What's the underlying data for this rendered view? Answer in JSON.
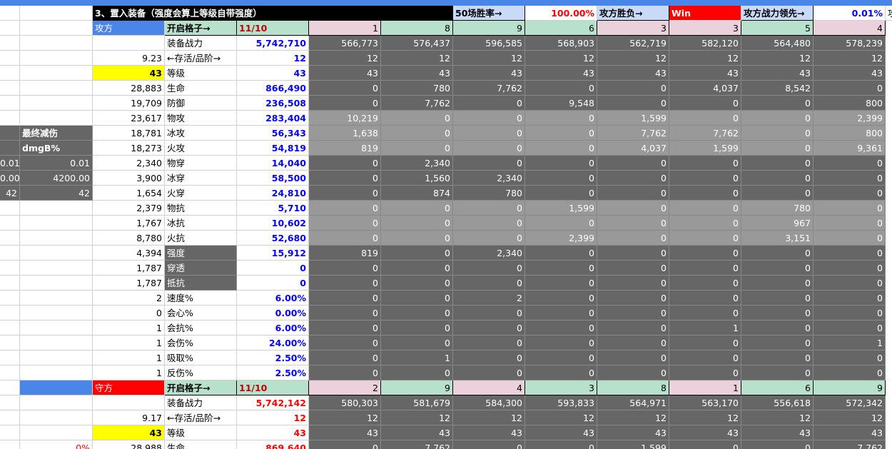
{
  "sheet": {
    "title": "3、置入装备（强度会算上等级自带强度）",
    "win_rate_label": "50场胜率→",
    "win_rate_value": "100.00%",
    "win_loss_label": "攻方胜负→",
    "win_loss_value": "Win",
    "lead_label": "攻方战力领先→",
    "lead_value": "0.01%",
    "lead_trail": "攻",
    "side_panel": {
      "final_reduction_label": "最终减伤",
      "dmg_label": "dmgB%",
      "rows": [
        [
          "0.01",
          "0.01"
        ],
        [
          "0.00",
          "4200.00"
        ],
        [
          "42",
          "42"
        ]
      ]
    },
    "attacker": {
      "label": "攻方",
      "slots_label": "开启格子→",
      "slots_value": "11/10",
      "slot_ids": [
        "1",
        "8",
        "9",
        "6",
        "3",
        "3",
        "5",
        "4"
      ],
      "rows": [
        {
          "a": "",
          "label": "装备战力",
          "total": "5,742,710",
          "vals": [
            "566,773",
            "576,437",
            "596,585",
            "568,903",
            "562,719",
            "582,120",
            "564,480",
            "578,239"
          ]
        },
        {
          "a": "9.23",
          "label": "←存活/品阶→",
          "total": "12",
          "vals": [
            "12",
            "12",
            "12",
            "12",
            "12",
            "12",
            "12",
            "12"
          ]
        },
        {
          "a": "43",
          "label": "等级",
          "total": "43",
          "vals": [
            "43",
            "43",
            "43",
            "43",
            "43",
            "43",
            "43",
            "43"
          ]
        },
        {
          "a": "28,883",
          "label": "生命",
          "total": "866,490",
          "vals": [
            "0",
            "780",
            "7,762",
            "0",
            "0",
            "4,037",
            "8,542",
            "0"
          ]
        },
        {
          "a": "19,709",
          "label": "防御",
          "total": "236,508",
          "vals": [
            "0",
            "7,762",
            "0",
            "9,548",
            "0",
            "0",
            "0",
            "800"
          ]
        },
        {
          "a": "23,617",
          "label": "物攻",
          "total": "283,404",
          "vals": [
            "10,219",
            "0",
            "0",
            "0",
            "1,599",
            "0",
            "0",
            "2,399"
          ]
        },
        {
          "a": "18,781",
          "label": "冰攻",
          "total": "56,343",
          "vals": [
            "1,638",
            "0",
            "0",
            "0",
            "7,762",
            "7,762",
            "0",
            "800"
          ]
        },
        {
          "a": "18,273",
          "label": "火攻",
          "total": "54,819",
          "vals": [
            "819",
            "0",
            "0",
            "0",
            "4,037",
            "1,599",
            "0",
            "9,361"
          ]
        },
        {
          "a": "2,340",
          "label": "物穿",
          "total": "14,040",
          "vals": [
            "0",
            "2,340",
            "0",
            "0",
            "0",
            "0",
            "0",
            "0"
          ]
        },
        {
          "a": "3,900",
          "label": "冰穿",
          "total": "58,500",
          "vals": [
            "0",
            "1,560",
            "2,340",
            "0",
            "0",
            "0",
            "0",
            "0"
          ]
        },
        {
          "a": "1,654",
          "label": "火穿",
          "total": "24,810",
          "vals": [
            "0",
            "874",
            "780",
            "0",
            "0",
            "0",
            "0",
            "0"
          ]
        },
        {
          "a": "2,379",
          "label": "物抗",
          "total": "5,710",
          "vals": [
            "0",
            "0",
            "0",
            "1,599",
            "0",
            "0",
            "780",
            "0"
          ]
        },
        {
          "a": "1,767",
          "label": "冰抗",
          "total": "10,602",
          "vals": [
            "0",
            "0",
            "0",
            "0",
            "0",
            "0",
            "967",
            "0"
          ]
        },
        {
          "a": "8,780",
          "label": "火抗",
          "total": "52,680",
          "vals": [
            "0",
            "0",
            "0",
            "2,399",
            "0",
            "0",
            "3,151",
            "0"
          ]
        },
        {
          "a": "4,394",
          "label": "强度",
          "total": "15,912",
          "vals": [
            "819",
            "0",
            "2,340",
            "0",
            "0",
            "0",
            "0",
            "0"
          ]
        },
        {
          "a": "1,787",
          "label": "穿透",
          "total": "0",
          "vals": [
            "0",
            "0",
            "0",
            "0",
            "0",
            "0",
            "0",
            "0"
          ]
        },
        {
          "a": "1,787",
          "label": "抵抗",
          "total": "0",
          "vals": [
            "0",
            "0",
            "0",
            "0",
            "0",
            "0",
            "0",
            "0"
          ]
        },
        {
          "a": "2",
          "label": "速度%",
          "total": "6.00%",
          "vals": [
            "0",
            "0",
            "2",
            "0",
            "0",
            "0",
            "0",
            "0"
          ]
        },
        {
          "a": "0",
          "label": "会心%",
          "total": "0.00%",
          "vals": [
            "0",
            "0",
            "0",
            "0",
            "0",
            "0",
            "0",
            "0"
          ]
        },
        {
          "a": "1",
          "label": "会抗%",
          "total": "6.00%",
          "vals": [
            "0",
            "0",
            "0",
            "0",
            "0",
            "1",
            "0",
            "0"
          ]
        },
        {
          "a": "1",
          "label": "会伤%",
          "total": "24.00%",
          "vals": [
            "0",
            "0",
            "0",
            "0",
            "0",
            "0",
            "0",
            "1"
          ]
        },
        {
          "a": "1",
          "label": "吸取%",
          "total": "2.50%",
          "vals": [
            "0",
            "1",
            "0",
            "0",
            "0",
            "0",
            "0",
            "0"
          ]
        },
        {
          "a": "1",
          "label": "反伤%",
          "total": "2.50%",
          "vals": [
            "0",
            "0",
            "0",
            "0",
            "0",
            "0",
            "0",
            "0"
          ]
        }
      ]
    },
    "defender": {
      "label": "守方",
      "slots_label": "开启格子→",
      "slots_value": "11/10",
      "slot_ids": [
        "2",
        "9",
        "4",
        "3",
        "8",
        "1",
        "6",
        "9"
      ],
      "rows": [
        {
          "a": "",
          "label": "装备战力",
          "total": "5,742,142",
          "vals": [
            "580,303",
            "581,679",
            "584,300",
            "593,833",
            "564,971",
            "563,170",
            "556,618",
            "572,342"
          ]
        },
        {
          "a": "9.17",
          "label": "←存活/品阶→",
          "total": "12",
          "vals": [
            "12",
            "12",
            "12",
            "12",
            "12",
            "12",
            "12",
            "12"
          ]
        },
        {
          "a": "43",
          "label": "等级",
          "total": "43",
          "vals": [
            "43",
            "43",
            "43",
            "43",
            "43",
            "43",
            "43",
            "43"
          ]
        },
        {
          "a": "28,988",
          "label": "生命",
          "total": "869,640",
          "vals": [
            "0",
            "7,762",
            "0",
            "0",
            "1,599",
            "0",
            "0",
            "7,762"
          ]
        }
      ],
      "left_pct": "0%"
    },
    "colors": {
      "accent_blue": "#4a86e8",
      "red": "#ff0000",
      "yellow": "#ffff00",
      "dark_cell": "#666666",
      "mid_cell": "#999999"
    }
  }
}
